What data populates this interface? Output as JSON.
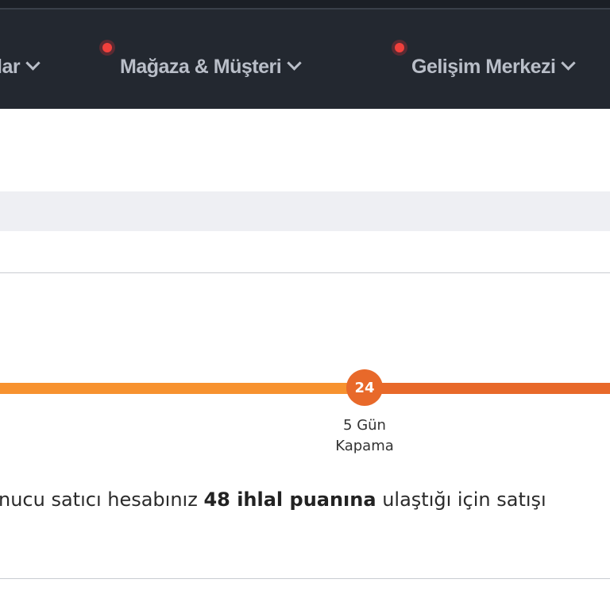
{
  "nav": {
    "items": [
      {
        "label": "lar",
        "badge": false
      },
      {
        "label": "Mağaza & Müşteri",
        "badge": true
      },
      {
        "label": "Gelişim Merkezi",
        "badge": true
      }
    ]
  },
  "progress": {
    "step_value": "24",
    "step_label_line1": "5 Gün",
    "step_label_line2": "Kapama",
    "colors": {
      "past": "#f7922f",
      "current": "#e8692a"
    }
  },
  "message": {
    "prefix": "nucu satıcı hesabınız ",
    "bold": "48 ihlal puanına",
    "suffix": " ulaştığı için satışı"
  }
}
